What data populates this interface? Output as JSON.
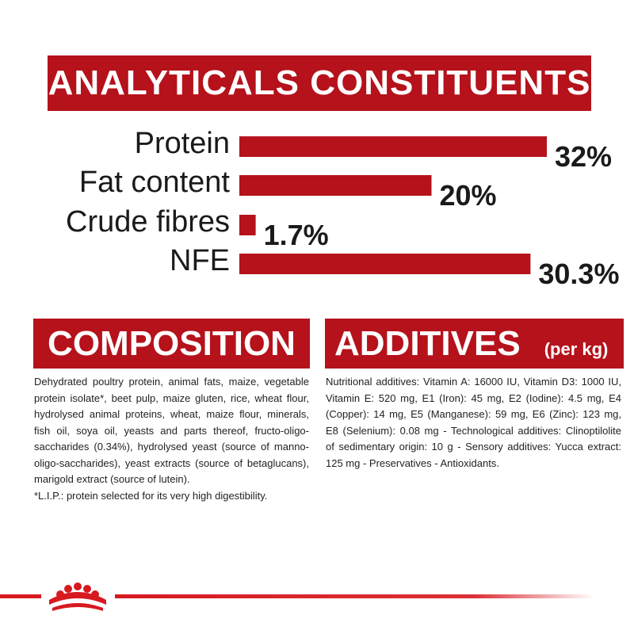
{
  "header": {
    "title": "ANALYTICALS CONSTITUENTS"
  },
  "colors": {
    "brand": "#b5121b",
    "bar": "#b5121b",
    "text": "#1a1a1a"
  },
  "chart_data": {
    "type": "bar",
    "orientation": "horizontal",
    "title": "ANALYTICALS CONSTITUENTS",
    "categories": [
      "Protein",
      "Fat content",
      "Crude fibres",
      "NFE"
    ],
    "values": [
      32,
      20,
      1.7,
      30.3
    ],
    "labels": [
      "32%",
      "20%",
      "1.7%",
      "30.3%"
    ],
    "xlim": [
      0,
      32
    ]
  },
  "composition": {
    "title": "COMPOSITION",
    "text": "Dehydrated poultry protein, animal fats, maize, vegetable protein isolate*, beet pulp, maize gluten, rice, wheat flour, hydrolysed animal proteins, wheat, maize flour, minerals, fish oil, soya oil, yeasts and parts thereof, fructo-oligo-saccharides (0.34%), hydrolysed yeast (source of manno-oligo-saccharides), yeast extracts (source of betaglucans), marigold extract (source of lutein).",
    "footnote": "*L.I.P.: protein selected for its very high digestibility."
  },
  "additives": {
    "title": "ADDITIVES",
    "subtitle": "(per kg)",
    "text": "Nutritional additives: Vitamin A: 16000 IU, Vitamin D3: 1000 IU, Vitamin E: 520 mg, E1 (Iron): 45 mg, E2 (Iodine): 4.5 mg, E4 (Copper): 14 mg, E5 (Manganese): 59 mg, E6 (Zinc): 123 mg, E8 (Selenium): 0.08 mg - Technological additives: Clinoptilolite of sedimentary origin: 10 g - Sensory additives: Yucca extract: 125 mg - Preservatives - Antioxidants."
  },
  "footer": {
    "logo_icon": "crown-icon"
  }
}
